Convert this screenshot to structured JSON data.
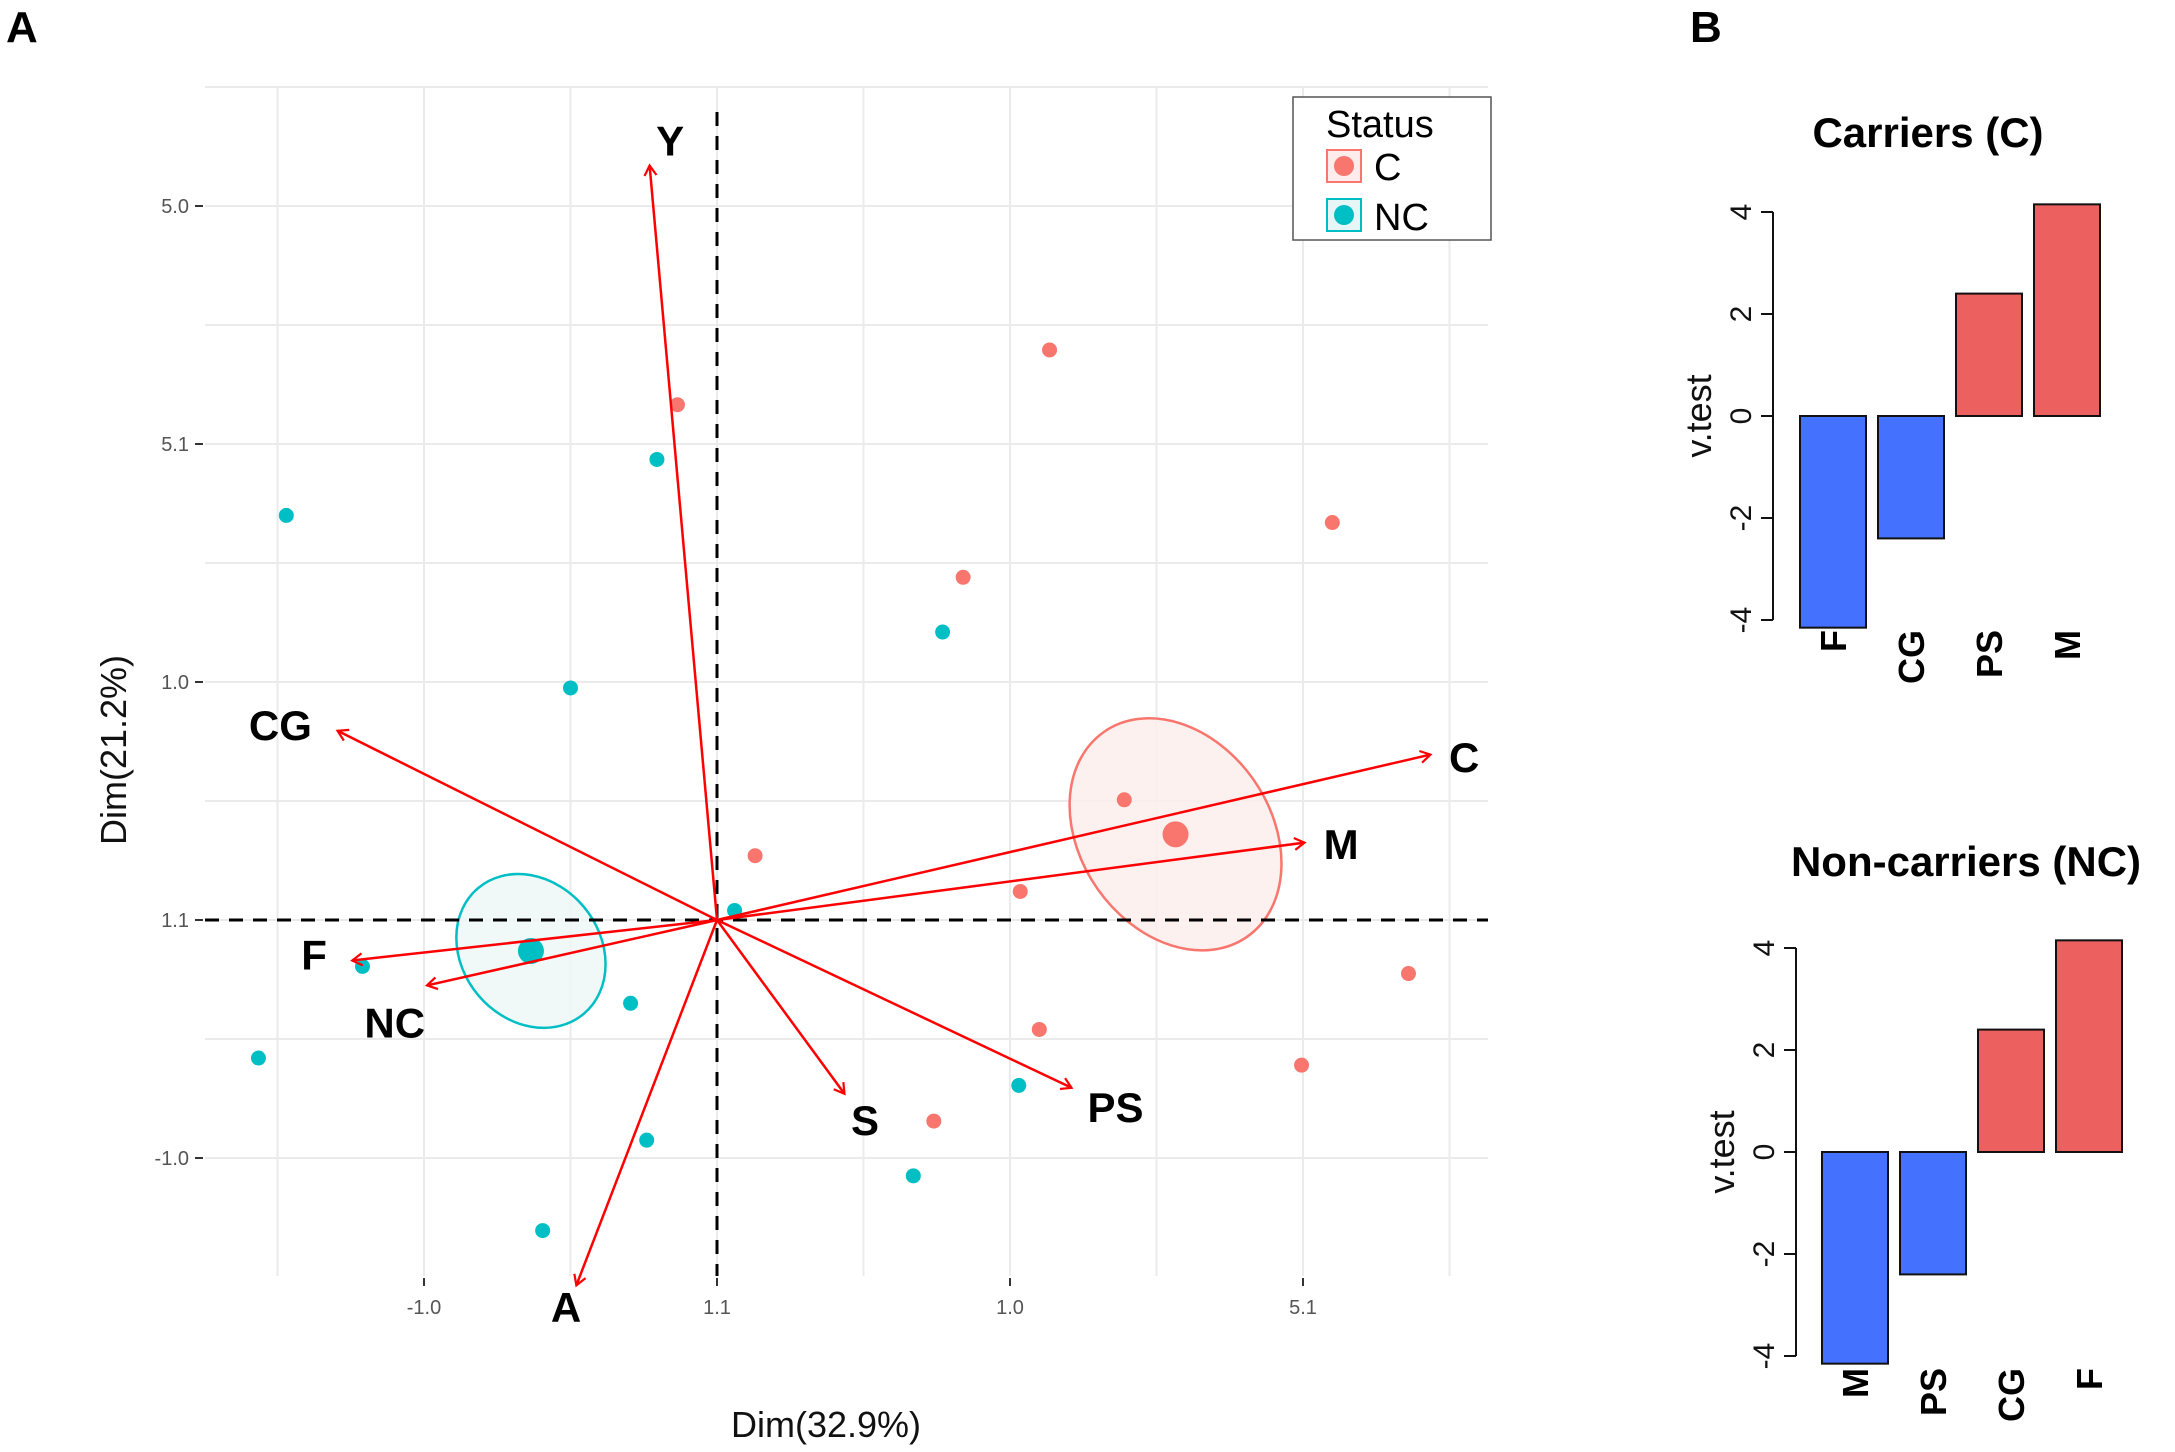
{
  "panel_labels": {
    "a": "A",
    "b": "B"
  },
  "chart_data": [
    {
      "type": "scatter",
      "subtype": "PCA biplot",
      "title": "",
      "xlabel": "Dim(32.9%)",
      "ylabel": "Dim(21.2%)",
      "xlim": [
        -3.5,
        5.3
      ],
      "ylim": [
        -3.0,
        7.0
      ],
      "x_ticks": [
        {
          "value": -2,
          "label": "-1.0"
        },
        {
          "value": 0,
          "label": "1.1"
        },
        {
          "value": 2,
          "label": "1.0"
        },
        {
          "value": 4,
          "label": "5.1"
        }
      ],
      "y_ticks": [
        {
          "value": 6,
          "label": "5.0"
        },
        {
          "value": 4,
          "label": "5.1"
        },
        {
          "value": 2,
          "label": "1.0"
        },
        {
          "value": 0,
          "label": "1.1"
        },
        {
          "value": -2,
          "label": "-1.0"
        }
      ],
      "grid": true,
      "reference_lines": {
        "x": 0,
        "y": 0,
        "style": "dashed"
      },
      "legend": {
        "title": "Status",
        "position": "top-right",
        "entries": [
          {
            "label": "C",
            "color": "#F8766D"
          },
          {
            "label": "NC",
            "color": "#00BFC4"
          }
        ]
      },
      "series": [
        {
          "name": "C",
          "color": "#F8766D",
          "points": [
            [
              2.27,
              4.79
            ],
            [
              -0.27,
              4.33
            ],
            [
              1.68,
              2.88
            ],
            [
              4.2,
              3.34
            ],
            [
              2.78,
              1.01
            ],
            [
              0.26,
              0.54
            ],
            [
              2.07,
              0.24
            ],
            [
              4.72,
              -0.45
            ],
            [
              2.2,
              -0.92
            ],
            [
              3.99,
              -1.22
            ],
            [
              1.48,
              -1.69
            ]
          ],
          "centroid": [
            3.13,
            0.72
          ],
          "ellipse": {
            "center": [
              3.13,
              0.72
            ],
            "rx": 0.65,
            "ry": 1.05,
            "angle": -35
          }
        },
        {
          "name": "NC",
          "color": "#00BFC4",
          "points": [
            [
              -2.94,
              3.4
            ],
            [
              -0.41,
              3.87
            ],
            [
              -1.0,
              1.95
            ],
            [
              1.54,
              2.42
            ],
            [
              0.12,
              0.08
            ],
            [
              -2.42,
              -0.39
            ],
            [
              -0.59,
              -0.7
            ],
            [
              -3.13,
              -1.16
            ],
            [
              2.06,
              -1.39
            ],
            [
              -0.48,
              -1.85
            ],
            [
              1.34,
              -2.15
            ],
            [
              -1.19,
              -2.61
            ]
          ],
          "centroid": [
            -1.27,
            -0.26
          ],
          "ellipse": {
            "center": [
              -1.27,
              -0.26
            ],
            "rx": 0.47,
            "ry": 0.69,
            "angle": -40
          }
        }
      ],
      "arrows": [
        {
          "label": "Y",
          "x": -0.46,
          "y": 6.34,
          "label_at": [
            -0.32,
            6.55
          ]
        },
        {
          "label": "CG",
          "x": -2.59,
          "y": 1.59,
          "label_at": [
            -2.98,
            1.64
          ]
        },
        {
          "label": "C",
          "x": 4.87,
          "y": 1.39,
          "label_at": [
            5.1,
            1.37
          ]
        },
        {
          "label": "M",
          "x": 4.01,
          "y": 0.65,
          "label_at": [
            4.26,
            0.64
          ]
        },
        {
          "label": "F",
          "x": -2.49,
          "y": -0.34,
          "label_at": [
            -2.75,
            -0.29
          ]
        },
        {
          "label": "NC",
          "x": -1.98,
          "y": -0.55,
          "label_at": [
            -2.2,
            -0.86
          ]
        },
        {
          "label": "S",
          "x": 0.87,
          "y": -1.46,
          "label_at": [
            1.01,
            -1.68
          ]
        },
        {
          "label": "PS",
          "x": 2.42,
          "y": -1.41,
          "label_at": [
            2.72,
            -1.57
          ]
        },
        {
          "label": "A",
          "x": -0.96,
          "y": -3.07,
          "label_at": [
            -1.03,
            -3.25
          ]
        }
      ],
      "arrow_color": "#FF0000"
    },
    {
      "type": "bar",
      "title": "Carriers (C)",
      "ylabel": "v.test",
      "categories": [
        "F",
        "CG",
        "PS",
        "M"
      ],
      "values": [
        -4.15,
        -2.4,
        2.4,
        4.15
      ],
      "colors": [
        "#4472FF",
        "#4472FF",
        "#EC6060",
        "#EC6060"
      ],
      "ylim": [
        -4,
        4
      ],
      "y_ticks": [
        -4,
        -2,
        0,
        2,
        4
      ]
    },
    {
      "type": "bar",
      "title": "Non-carriers (NC)",
      "ylabel": "v.test",
      "categories": [
        "M",
        "PS",
        "CG",
        "F"
      ],
      "values": [
        -4.15,
        -2.4,
        2.4,
        4.15
      ],
      "colors": [
        "#4472FF",
        "#4472FF",
        "#EC6060",
        "#EC6060"
      ],
      "ylim": [
        -4,
        4
      ],
      "y_ticks": [
        -4,
        -2,
        0,
        2,
        4
      ]
    }
  ]
}
